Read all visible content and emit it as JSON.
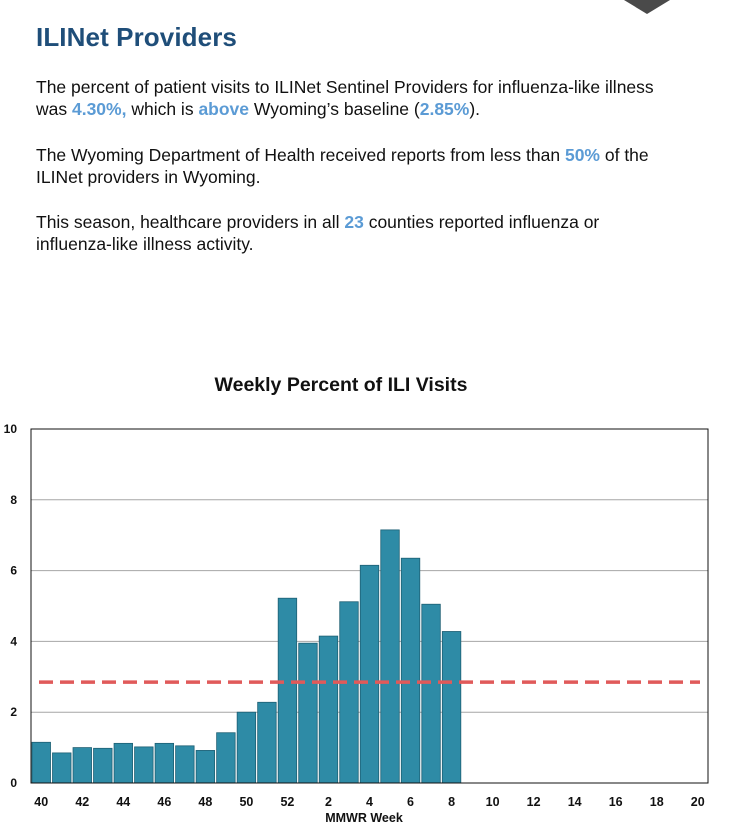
{
  "header": {
    "title": "ILINet Providers"
  },
  "summary": {
    "p1_a": "The percent of patient visits to ILINet Sentinel Providers for influenza-like illness was ",
    "p1_value": "4.30%,",
    "p1_b": " which is ",
    "p1_above": "above",
    "p1_c": " Wyoming’s baseline (",
    "p1_baseline": "2.85%",
    "p1_d": ").",
    "p2_a": "The Wyoming Department of Health received reports from less than ",
    "p2_value": "50%",
    "p2_b": " of the ILINet providers in Wyoming.",
    "p3_a": "This season, healthcare providers in all ",
    "p3_value": "23",
    "p3_b": " counties reported influenza or influenza-like illness activity."
  },
  "colors": {
    "heading": "#1f4e79",
    "highlight": "#5b9bd5",
    "bar": "#2e8ba6",
    "bar_border": "#1d5f73",
    "baseline": "#e05a5a",
    "gridline": "#a6a6a6"
  },
  "chart_data": {
    "type": "bar",
    "title": "Weekly Percent of ILI Visits",
    "xlabel": "MMWR Week",
    "ylabel": "",
    "ylim": [
      0,
      10
    ],
    "yticks": [
      0,
      2,
      4,
      6,
      8,
      10
    ],
    "grid": true,
    "categories": [
      "40",
      "41",
      "42",
      "43",
      "44",
      "45",
      "46",
      "47",
      "48",
      "49",
      "50",
      "51",
      "52",
      "1",
      "2",
      "3",
      "4",
      "5",
      "6",
      "7",
      "8",
      "9",
      "10",
      "11",
      "12",
      "13",
      "14",
      "15",
      "16",
      "17",
      "18",
      "19",
      "20"
    ],
    "xtick_labels": [
      "40",
      "42",
      "44",
      "46",
      "48",
      "50",
      "52",
      "2",
      "4",
      "6",
      "8",
      "10",
      "12",
      "14",
      "16",
      "18",
      "20"
    ],
    "values": [
      1.15,
      0.85,
      1.0,
      0.98,
      1.12,
      1.02,
      1.12,
      1.05,
      0.92,
      1.42,
      2.0,
      2.28,
      5.22,
      3.95,
      4.15,
      5.12,
      6.15,
      7.15,
      6.35,
      5.05,
      4.28,
      null,
      null,
      null,
      null,
      null,
      null,
      null,
      null,
      null,
      null,
      null,
      null
    ],
    "baseline": {
      "value": 2.85,
      "style": "dashed"
    }
  }
}
